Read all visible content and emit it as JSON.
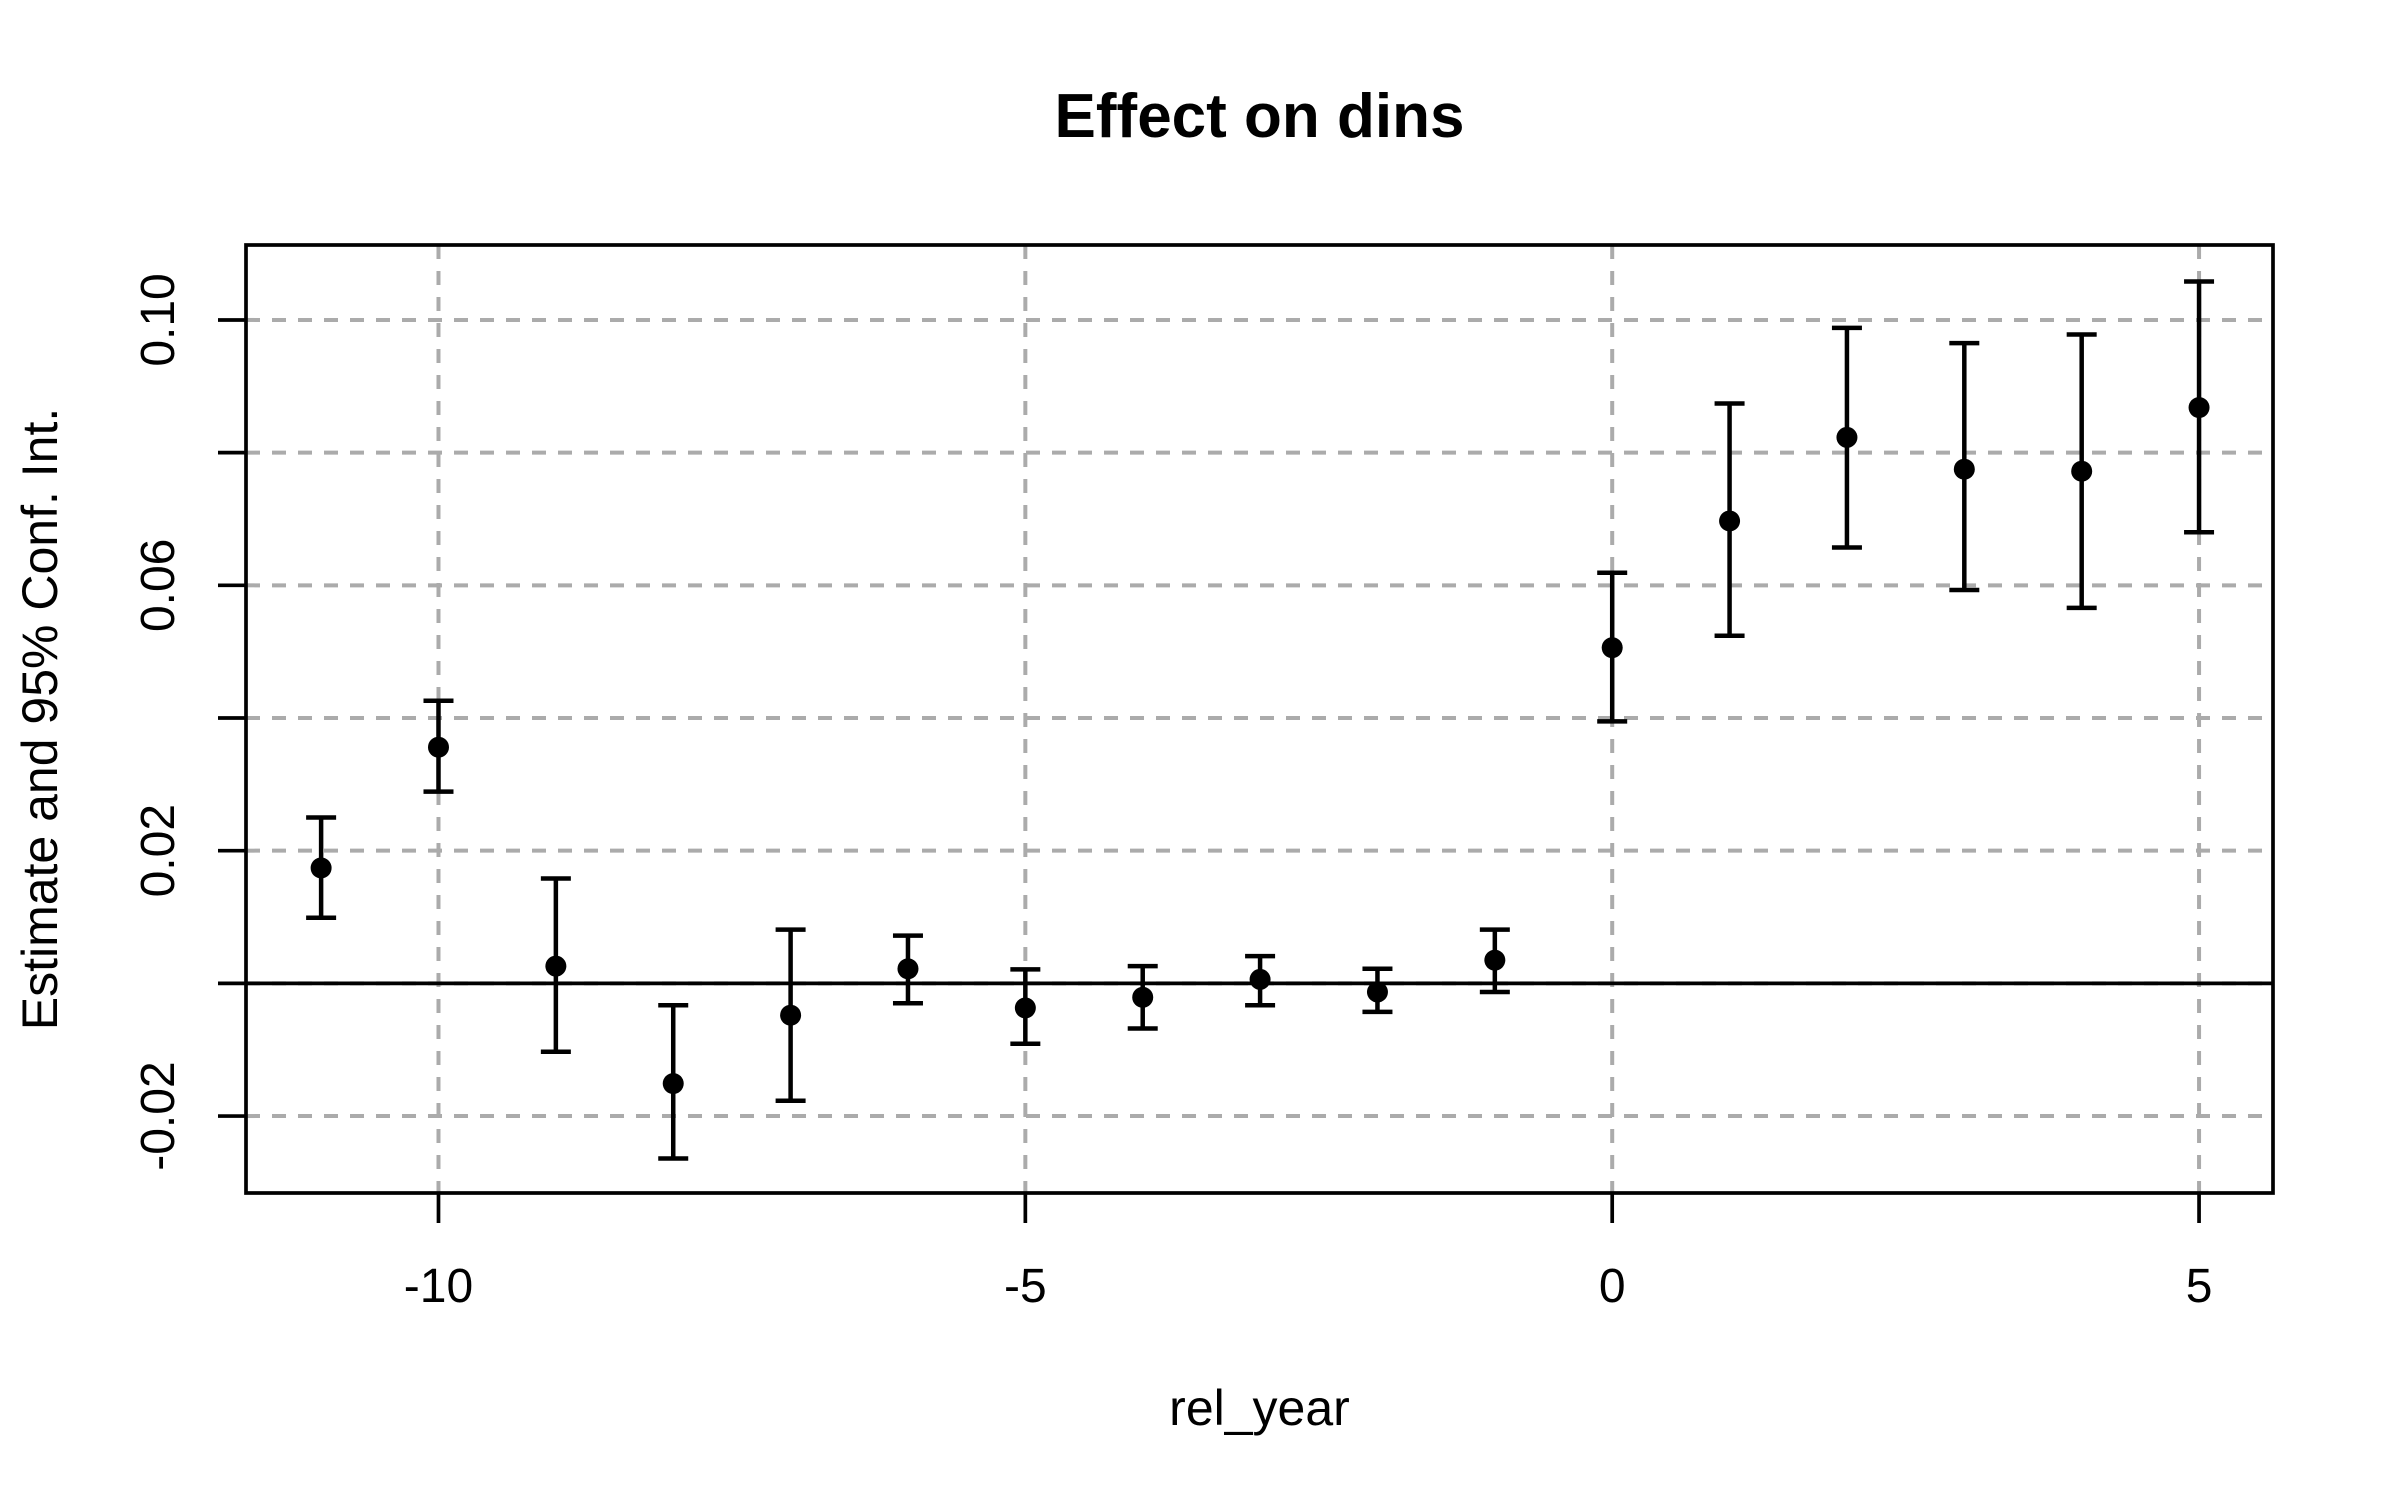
{
  "chart_data": {
    "type": "scatter",
    "subtype": "event-study-errorbar",
    "title": "Effect on dins",
    "xlabel": "rel_year",
    "ylabel": "Estimate and 95% Conf. Int.",
    "xlim": [
      -11.64,
      5.63
    ],
    "ylim": [
      -0.0316,
      0.1113
    ],
    "x_ticks": [
      -10,
      -5,
      0,
      5
    ],
    "x_tick_labels": [
      "-10",
      "-5",
      "0",
      "5"
    ],
    "y_ticks": [
      0.1,
      0.08,
      0.06,
      0.04,
      0.02,
      0.0,
      -0.02
    ],
    "y_tick_labels": [
      "0.10",
      "",
      "0.06",
      "",
      "0.02",
      "",
      "-0.02"
    ],
    "grid": true,
    "legend": "none",
    "reference_line_y": 0,
    "colors": {
      "point": "#000000",
      "error_bar": "#000000",
      "grid": "#ABABAB",
      "axis": "#000000",
      "background": "#FFFFFF"
    },
    "series": [
      {
        "name": "estimate",
        "points": [
          {
            "x": -11,
            "est": 0.0174,
            "lo": 0.0099,
            "hi": 0.025
          },
          {
            "x": -10,
            "est": 0.0356,
            "lo": 0.0289,
            "hi": 0.0426
          },
          {
            "x": -9,
            "est": 0.0026,
            "lo": -0.0103,
            "hi": 0.0158
          },
          {
            "x": -8,
            "est": -0.0151,
            "lo": -0.0264,
            "hi": -0.0033
          },
          {
            "x": -7,
            "est": -0.0048,
            "lo": -0.0177,
            "hi": 0.0081
          },
          {
            "x": -6,
            "est": 0.0022,
            "lo": -0.003,
            "hi": 0.0072
          },
          {
            "x": -5,
            "est": -0.0037,
            "lo": -0.0091,
            "hi": 0.0021
          },
          {
            "x": -4,
            "est": -0.0021,
            "lo": -0.0068,
            "hi": 0.0026
          },
          {
            "x": -3,
            "est": 0.0006,
            "lo": -0.0033,
            "hi": 0.0041
          },
          {
            "x": -2,
            "est": -0.0013,
            "lo": -0.0043,
            "hi": 0.0022
          },
          {
            "x": -1,
            "est": 0.0035,
            "lo": -0.0013,
            "hi": 0.0081
          },
          {
            "x": 0,
            "est": 0.0506,
            "lo": 0.0395,
            "hi": 0.0619
          },
          {
            "x": 1,
            "est": 0.0697,
            "lo": 0.0524,
            "hi": 0.0874
          },
          {
            "x": 2,
            "est": 0.0823,
            "lo": 0.0657,
            "hi": 0.0988
          },
          {
            "x": 3,
            "est": 0.0775,
            "lo": 0.0593,
            "hi": 0.0965
          },
          {
            "x": 4,
            "est": 0.0772,
            "lo": 0.0566,
            "hi": 0.0978
          },
          {
            "x": 5,
            "est": 0.0868,
            "lo": 0.068,
            "hi": 0.1058
          }
        ]
      }
    ]
  }
}
